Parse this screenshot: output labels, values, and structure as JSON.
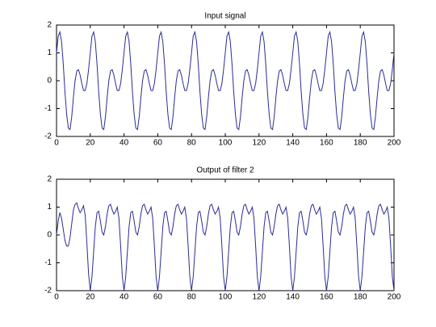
{
  "chart_data": [
    {
      "type": "line",
      "title": "Input signal",
      "x": [
        0,
        1,
        2,
        3,
        4,
        5,
        6,
        7,
        8,
        9,
        10,
        11,
        12,
        13,
        14,
        15,
        16,
        17,
        18,
        19,
        20,
        21,
        22,
        23,
        24,
        25,
        26,
        27,
        28,
        29,
        30,
        31,
        32,
        33,
        34,
        35,
        36,
        37,
        38,
        39,
        40,
        41,
        42,
        43,
        44,
        45,
        46,
        47,
        48,
        49,
        50,
        51,
        52,
        53,
        54,
        55,
        56,
        57,
        58,
        59,
        60,
        61,
        62,
        63,
        64,
        65,
        66,
        67,
        68,
        69,
        70,
        71,
        72,
        73,
        74,
        75,
        76,
        77,
        78,
        79,
        80,
        81,
        82,
        83,
        84,
        85,
        86,
        87,
        88,
        89,
        90,
        91,
        92,
        93,
        94,
        95,
        96,
        97,
        98,
        99,
        100,
        101,
        102,
        103,
        104,
        105,
        106,
        107,
        108,
        109,
        110,
        111,
        112,
        113,
        114,
        115,
        116,
        117,
        118,
        119,
        120,
        121,
        122,
        123,
        124,
        125,
        126,
        127,
        128,
        129,
        130,
        131,
        132,
        133,
        134,
        135,
        136,
        137,
        138,
        139,
        140,
        141,
        142,
        143,
        144,
        145,
        146,
        147,
        148,
        149,
        150,
        151,
        152,
        153,
        154,
        155,
        156,
        157,
        158,
        159,
        160,
        161,
        162,
        163,
        164,
        165,
        166,
        167,
        168,
        169,
        170,
        171,
        172,
        173,
        174,
        175,
        176,
        177,
        178,
        179,
        180,
        181,
        182,
        183,
        184,
        185,
        186,
        187,
        188,
        189,
        190,
        191,
        192,
        193,
        194,
        195,
        196,
        197,
        198,
        199,
        200
      ],
      "series": [
        {
          "color": "#2b2b96",
          "values": [
            1,
            1.6,
            1.75,
            1.4,
            0.6,
            -0.4,
            -1.2,
            -1.7,
            -1.75,
            -1.3,
            -0.6,
            0,
            0.35,
            0.4,
            0.2,
            -0.1,
            -0.35,
            -0.35,
            -0.1,
            0.4,
            1,
            1.6,
            1.75,
            1.4,
            0.6,
            -0.4,
            -1.2,
            -1.7,
            -1.75,
            -1.3,
            -0.6,
            0,
            0.35,
            0.4,
            0.2,
            -0.1,
            -0.35,
            -0.35,
            -0.1,
            0.4,
            1,
            1.6,
            1.75,
            1.4,
            0.6,
            -0.4,
            -1.2,
            -1.7,
            -1.75,
            -1.3,
            -0.6,
            0,
            0.35,
            0.4,
            0.2,
            -0.1,
            -0.35,
            -0.35,
            -0.1,
            0.4,
            1,
            1.6,
            1.75,
            1.4,
            0.6,
            -0.4,
            -1.2,
            -1.7,
            -1.75,
            -1.3,
            -0.6,
            0,
            0.35,
            0.4,
            0.2,
            -0.1,
            -0.35,
            -0.35,
            -0.1,
            0.4,
            1,
            1.6,
            1.75,
            1.4,
            0.6,
            -0.4,
            -1.2,
            -1.7,
            -1.75,
            -1.3,
            -0.6,
            0,
            0.35,
            0.4,
            0.2,
            -0.1,
            -0.35,
            -0.35,
            -0.1,
            0.4,
            1,
            1.6,
            1.75,
            1.4,
            0.6,
            -0.4,
            -1.2,
            -1.7,
            -1.75,
            -1.3,
            -0.6,
            0,
            0.35,
            0.4,
            0.2,
            -0.1,
            -0.35,
            -0.35,
            -0.1,
            0.4,
            1,
            1.6,
            1.75,
            1.4,
            0.6,
            -0.4,
            -1.2,
            -1.7,
            -1.75,
            -1.3,
            -0.6,
            0,
            0.35,
            0.4,
            0.2,
            -0.1,
            -0.35,
            -0.35,
            -0.1,
            0.4,
            1,
            1.6,
            1.75,
            1.4,
            0.6,
            -0.4,
            -1.2,
            -1.7,
            -1.75,
            -1.3,
            -0.6,
            0,
            0.35,
            0.4,
            0.2,
            -0.1,
            -0.35,
            -0.35,
            -0.1,
            0.4,
            1,
            1.6,
            1.75,
            1.4,
            0.6,
            -0.4,
            -1.2,
            -1.7,
            -1.75,
            -1.3,
            -0.6,
            0,
            0.35,
            0.4,
            0.2,
            -0.1,
            -0.35,
            -0.35,
            -0.1,
            0.4,
            1,
            1.6,
            1.75,
            1.4,
            0.6,
            -0.4,
            -1.2,
            -1.7,
            -1.75,
            -1.3,
            -0.6,
            0,
            0.35,
            0.4,
            0.2,
            -0.1,
            -0.35,
            -0.35,
            -0.1,
            0.4,
            1
          ]
        }
      ],
      "xlim": [
        0,
        200
      ],
      "ylim": [
        -2,
        2
      ],
      "xticks": [
        0,
        20,
        40,
        60,
        80,
        100,
        120,
        140,
        160,
        180,
        200
      ],
      "yticks": [
        -2,
        -1,
        0,
        1,
        2
      ]
    },
    {
      "type": "line",
      "title": "Output of filter 2",
      "x": [
        0,
        1,
        2,
        3,
        4,
        5,
        6,
        7,
        8,
        9,
        10,
        11,
        12,
        13,
        14,
        15,
        16,
        17,
        18,
        19,
        20,
        21,
        22,
        23,
        24,
        25,
        26,
        27,
        28,
        29,
        30,
        31,
        32,
        33,
        34,
        35,
        36,
        37,
        38,
        39,
        40,
        41,
        42,
        43,
        44,
        45,
        46,
        47,
        48,
        49,
        50,
        51,
        52,
        53,
        54,
        55,
        56,
        57,
        58,
        59,
        60,
        61,
        62,
        63,
        64,
        65,
        66,
        67,
        68,
        69,
        70,
        71,
        72,
        73,
        74,
        75,
        76,
        77,
        78,
        79,
        80,
        81,
        82,
        83,
        84,
        85,
        86,
        87,
        88,
        89,
        90,
        91,
        92,
        93,
        94,
        95,
        96,
        97,
        98,
        99,
        100,
        101,
        102,
        103,
        104,
        105,
        106,
        107,
        108,
        109,
        110,
        111,
        112,
        113,
        114,
        115,
        116,
        117,
        118,
        119,
        120,
        121,
        122,
        123,
        124,
        125,
        126,
        127,
        128,
        129,
        130,
        131,
        132,
        133,
        134,
        135,
        136,
        137,
        138,
        139,
        140,
        141,
        142,
        143,
        144,
        145,
        146,
        147,
        148,
        149,
        150,
        151,
        152,
        153,
        154,
        155,
        156,
        157,
        158,
        159,
        160,
        161,
        162,
        163,
        164,
        165,
        166,
        167,
        168,
        169,
        170,
        171,
        172,
        173,
        174,
        175,
        176,
        177,
        178,
        179,
        180,
        181,
        182,
        183,
        184,
        185,
        186,
        187,
        188,
        189,
        190,
        191,
        192,
        193,
        194,
        195,
        196,
        197,
        198,
        199,
        200
      ],
      "series": [
        {
          "color": "#2b2b96",
          "values": [
            0,
            0.5,
            0.8,
            0.6,
            0.2,
            -0.2,
            -0.4,
            -0.4,
            -0.1,
            0.4,
            0.9,
            1.1,
            1.15,
            0.95,
            0.8,
            0.9,
            1.05,
            0.7,
            -0.3,
            -1.4,
            -2,
            -1.5,
            -0.6,
            0.3,
            0.8,
            0.85,
            0.5,
            0.1,
            0,
            0.3,
            0.75,
            1.05,
            1.1,
            0.9,
            0.75,
            0.85,
            1,
            0.6,
            -0.4,
            -1.5,
            -2,
            -1.5,
            -0.6,
            0.3,
            0.8,
            0.85,
            0.5,
            0.1,
            0,
            0.3,
            0.75,
            1.05,
            1.1,
            0.9,
            0.75,
            0.85,
            1,
            0.6,
            -0.4,
            -1.5,
            -2,
            -1.5,
            -0.6,
            0.3,
            0.8,
            0.85,
            0.5,
            0.1,
            0,
            0.3,
            0.75,
            1.05,
            1.1,
            0.9,
            0.75,
            0.85,
            1,
            0.6,
            -0.4,
            -1.5,
            -2,
            -1.5,
            -0.6,
            0.3,
            0.8,
            0.85,
            0.5,
            0.1,
            0,
            0.3,
            0.75,
            1.05,
            1.1,
            0.9,
            0.75,
            0.85,
            1,
            0.6,
            -0.4,
            -1.5,
            -2,
            -1.5,
            -0.6,
            0.3,
            0.8,
            0.85,
            0.5,
            0.1,
            0,
            0.3,
            0.75,
            1.05,
            1.1,
            0.9,
            0.75,
            0.85,
            1,
            0.6,
            -0.4,
            -1.5,
            -2,
            -1.5,
            -0.6,
            0.3,
            0.8,
            0.85,
            0.5,
            0.1,
            0,
            0.3,
            0.75,
            1.05,
            1.1,
            0.9,
            0.75,
            0.85,
            1,
            0.6,
            -0.4,
            -1.5,
            -2,
            -1.5,
            -0.6,
            0.3,
            0.8,
            0.85,
            0.5,
            0.1,
            0,
            0.3,
            0.75,
            1.05,
            1.1,
            0.9,
            0.75,
            0.85,
            1,
            0.6,
            -0.4,
            -1.5,
            -2,
            -1.5,
            -0.6,
            0.3,
            0.8,
            0.85,
            0.5,
            0.1,
            0,
            0.3,
            0.75,
            1.05,
            1.1,
            0.9,
            0.75,
            0.85,
            1,
            0.6,
            -0.4,
            -1.5,
            -2,
            -1.5,
            -0.6,
            0.3,
            0.8,
            0.85,
            0.5,
            0.1,
            0,
            0.3,
            0.75,
            1.05,
            1.1,
            0.9,
            0.75,
            0.85,
            1,
            0.6,
            -0.4,
            -1.5,
            -2
          ]
        }
      ],
      "xlim": [
        0,
        200
      ],
      "ylim": [
        -2,
        2
      ],
      "xticks": [
        0,
        20,
        40,
        60,
        80,
        100,
        120,
        140,
        160,
        180,
        200
      ],
      "yticks": [
        -2,
        -1,
        0,
        1,
        2
      ]
    }
  ]
}
